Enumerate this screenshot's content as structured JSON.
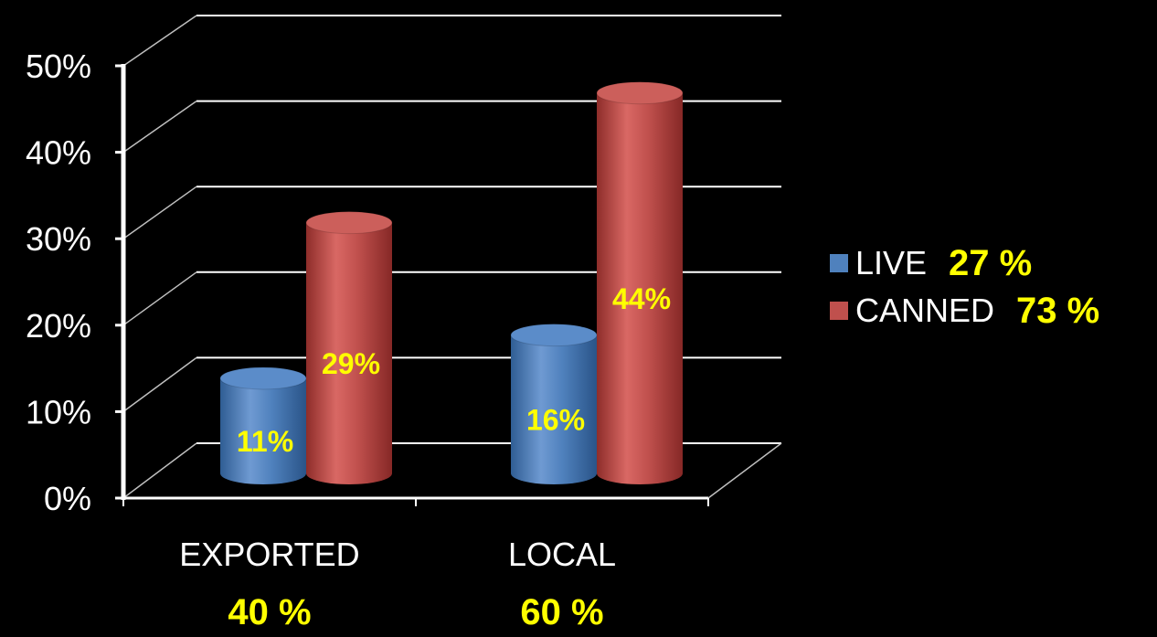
{
  "chart_data": {
    "type": "bar",
    "title": "",
    "xlabel": "",
    "ylabel": "",
    "ylim": [
      0,
      50
    ],
    "y_ticks": [
      "0%",
      "10%",
      "20%",
      "30%",
      "40%",
      "50%"
    ],
    "categories": [
      "EXPORTED",
      "LOCAL"
    ],
    "category_totals": [
      "40 %",
      "60 %"
    ],
    "series": [
      {
        "name": "LIVE",
        "values": [
          11,
          16
        ],
        "labels": [
          "11%",
          "16%"
        ],
        "color": "#4f81bd",
        "total": "27 %"
      },
      {
        "name": "CANNED",
        "values": [
          29,
          44
        ],
        "labels": [
          "29%",
          "44%"
        ],
        "color": "#c0504d",
        "total": "73 %"
      }
    ],
    "grid": true,
    "legend_position": "right",
    "style": "3d-cylinder"
  }
}
